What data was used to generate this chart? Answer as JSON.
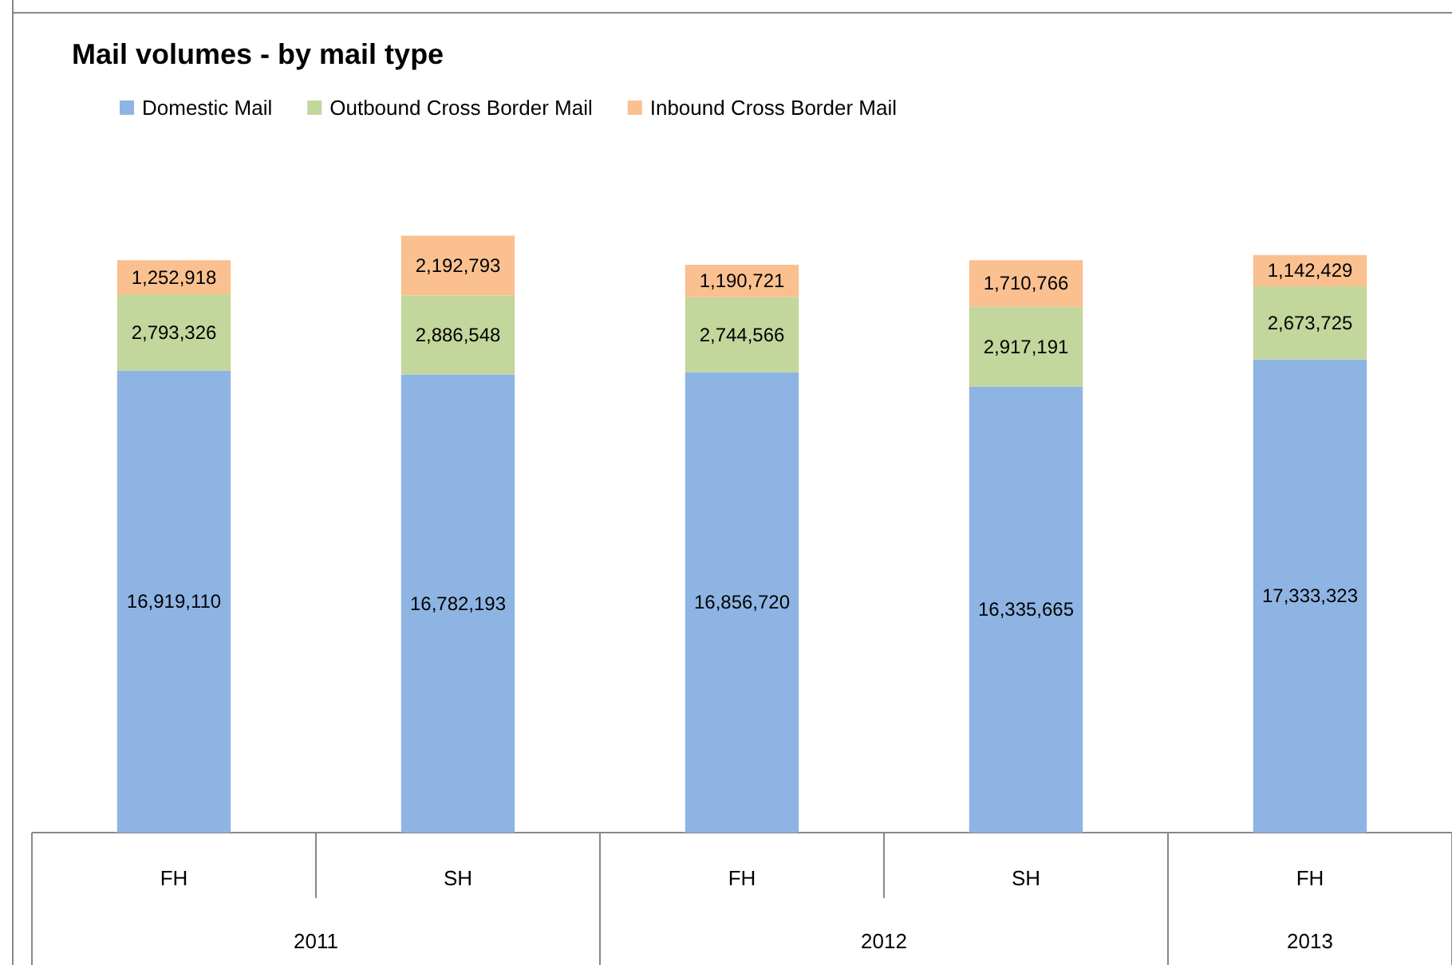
{
  "chart_data": {
    "type": "bar",
    "title": "Mail volumes - by mail type",
    "categories": [
      "FH",
      "SH",
      "FH",
      "SH",
      "FH"
    ],
    "stacked": true,
    "legend": "top left",
    "series": [
      {
        "name": "Domestic Mail",
        "color": "#8eb4e3",
        "values": [
          16919110,
          16782193,
          16856720,
          16335665,
          17333323
        ],
        "value_labels": [
          "16,919,110",
          "16,782,193",
          "16,856,720",
          "16,335,665",
          "17,333,323"
        ]
      },
      {
        "name": "Outbound Cross Border Mail",
        "color": "#c3d69b",
        "values": [
          2793326,
          2886548,
          2744566,
          2917191,
          2673725
        ],
        "value_labels": [
          "2,793,326",
          "2,886,548",
          "2,744,566",
          "2,917,191",
          "2,673,725"
        ]
      },
      {
        "name": "Inbound Cross Border Mail",
        "color": "#fac090",
        "values": [
          1252918,
          2192793,
          1190721,
          1710766,
          1142429
        ],
        "value_labels": [
          "1,252,918",
          "2,192,793",
          "1,190,721",
          "1,710,766",
          "1,142,429"
        ]
      }
    ],
    "annotations": [
      "2011",
      "2012",
      "2013"
    ]
  }
}
